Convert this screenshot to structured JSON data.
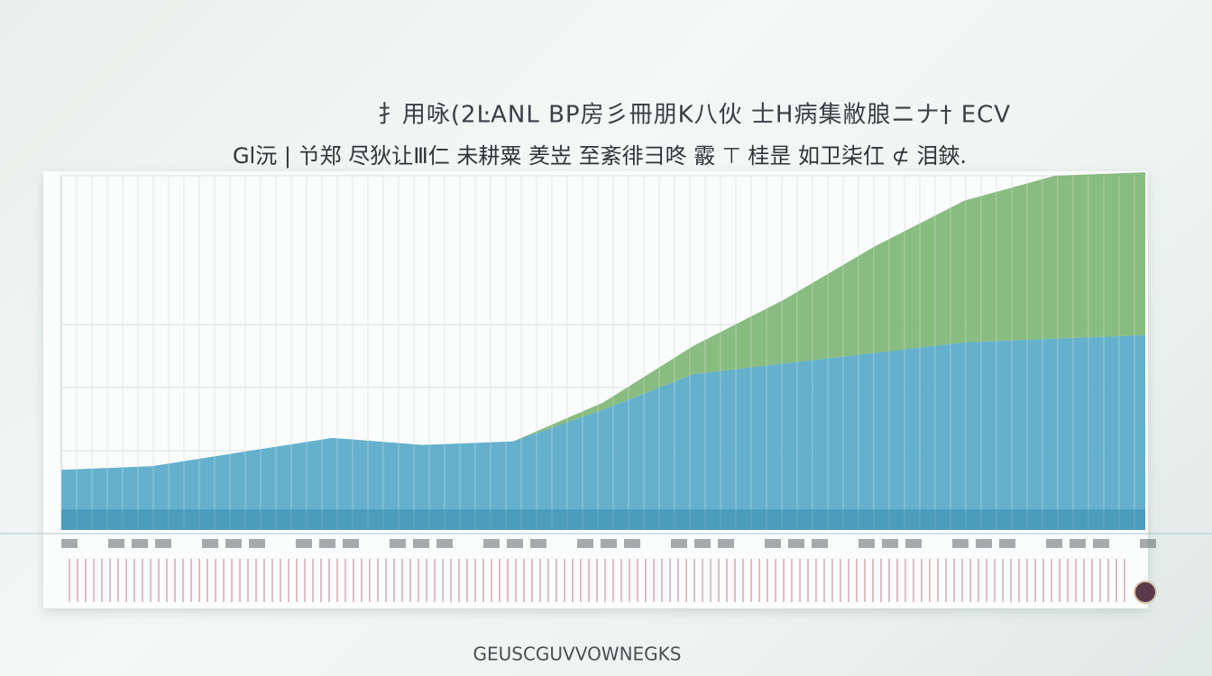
{
  "chart_data": {
    "type": "area",
    "title": "扌用咏(2ĿANL BP房彡冊朋K八伙 士H病集敝朖ニナ† ECV",
    "subtitle": "Gl沅 | 兯郑 尽狄让Ⅲ仁 未耕粟 羑岦 至紊徘彐咚 霰 ⊤ 桂昰 如卫柒仜 ⊄ 泪鋏.",
    "footer": "GEUSCGUVVOWNEGKS",
    "categories": [
      null,
      null,
      null,
      null,
      null,
      null,
      null,
      null,
      null,
      null,
      null,
      null,
      null
    ],
    "series": [
      {
        "color": "#4aa3c4",
        "values": [
          17,
          18,
          22,
          26,
          24,
          25,
          34,
          44,
          47,
          50,
          53,
          54,
          55
        ]
      },
      {
        "color": "#74b06a",
        "values": [
          0,
          0,
          0,
          0,
          0,
          0,
          2,
          8,
          18,
          30,
          40,
          46,
          46
        ]
      }
    ],
    "ylim": [
      0,
      100
    ],
    "stacked": true
  }
}
